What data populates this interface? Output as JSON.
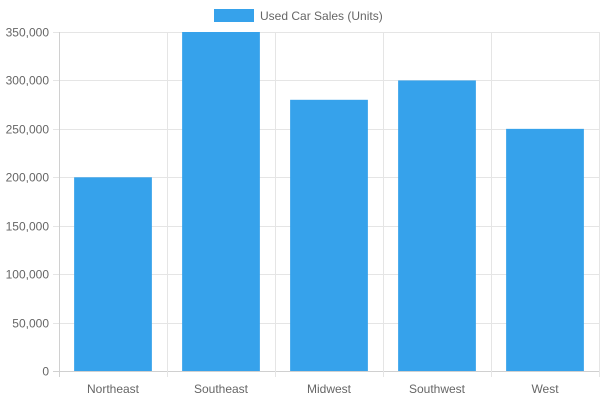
{
  "chart_data": {
    "type": "bar",
    "categories": [
      "Northeast",
      "Southeast",
      "Midwest",
      "Southwest",
      "West"
    ],
    "series": [
      {
        "name": "Used Car Sales (Units)",
        "values": [
          200000,
          350000,
          280000,
          300000,
          250000
        ],
        "color": "#36a2eb"
      }
    ],
    "y_ticks": [
      "0",
      "50,000",
      "100,000",
      "150,000",
      "200,000",
      "250,000",
      "300,000",
      "350,000"
    ],
    "ylim": [
      0,
      350000
    ],
    "grid": true,
    "legend_position": "top-center"
  }
}
